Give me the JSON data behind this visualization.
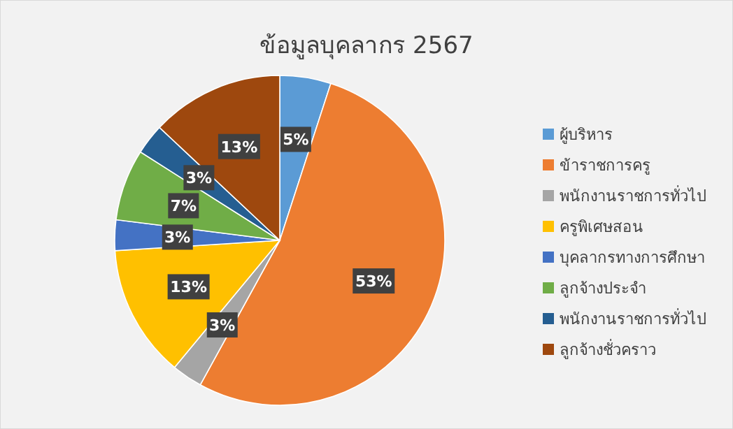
{
  "chart_data": {
    "type": "pie",
    "title": "ข้อมูลบุคลากร 2567",
    "categories": [
      "ผู้บริหาร",
      "ข้าราชการครู",
      "พนักงานราชการทั่วไป",
      "ครูพิเศษสอน",
      "บุคลากรทางการศึกษา",
      "ลูกจ้างประจำ",
      "พนักงานราชการทั่วไป",
      "ลูกจ้างชั่วคราว"
    ],
    "values": [
      5,
      53,
      3,
      13,
      3,
      7,
      3,
      13
    ],
    "colors": [
      "#5b9bd5",
      "#ed7d31",
      "#a5a5a5",
      "#ffc000",
      "#4472c4",
      "#70ad47",
      "#255e91",
      "#9e480e"
    ],
    "value_labels": [
      "5%",
      "53%",
      "3%",
      "13%",
      "3%",
      "7%",
      "3%",
      "13%"
    ],
    "legend": "right"
  }
}
